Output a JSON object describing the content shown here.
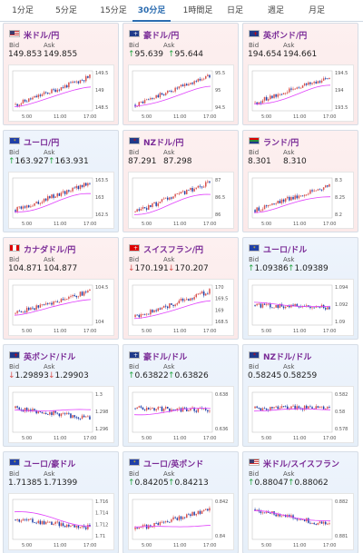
{
  "tabs": [
    {
      "label": "1分足",
      "active": false
    },
    {
      "label": "5分足",
      "active": false
    },
    {
      "label": "15分足",
      "active": false
    },
    {
      "label": "30分足",
      "active": true
    },
    {
      "label": "1時間足",
      "active": false
    },
    {
      "label": "日足",
      "active": false
    },
    {
      "label": "週足",
      "active": false
    },
    {
      "label": "月足",
      "active": false
    }
  ],
  "labels": {
    "bid": "Bid",
    "ask": "Ask"
  },
  "colors": {
    "up_bg": "#fdf0f0",
    "down_bg": "#eef4fc",
    "pair_name": "#7a2b97",
    "candle_up": "#d9534f",
    "candle_down": "#1f3fa8",
    "ma_line": "#e040fb",
    "tab_active": "#2b6cb0"
  },
  "x_ticks": [
    "5:00",
    "11:00",
    "17:00"
  ],
  "pairs": [
    {
      "name": "米ドル/円",
      "flag": "us",
      "bg": "up",
      "arrow": "",
      "bid": "149.853",
      "ask": "149.855",
      "y_ticks": [
        "149.5",
        "149",
        "148.5"
      ],
      "trend": [
        0.15,
        0.85
      ],
      "ma": [
        0.1,
        0.6
      ]
    },
    {
      "name": "豪ドル/円",
      "flag": "au",
      "bg": "up",
      "arrow": "up",
      "bid": "95.639",
      "ask": "95.644",
      "y_ticks": [
        "95.5",
        "95",
        "94.5"
      ],
      "trend": [
        0.15,
        0.88
      ],
      "ma": [
        0.1,
        0.6
      ]
    },
    {
      "name": "英ポンド/円",
      "flag": "gb",
      "bg": "up",
      "arrow": "",
      "bid": "194.654",
      "ask": "194.661",
      "y_ticks": [
        "194.5",
        "194",
        "193.5"
      ],
      "trend": [
        0.2,
        0.85
      ],
      "ma": [
        0.15,
        0.62
      ]
    },
    {
      "name": "ユーロ/円",
      "flag": "eu",
      "bg": "down",
      "arrow": "up",
      "bid": "163.927",
      "ask": "163.931",
      "y_ticks": [
        "163.5",
        "163",
        "162.5"
      ],
      "trend": [
        0.2,
        0.88
      ],
      "ma": [
        0.15,
        0.6
      ]
    },
    {
      "name": "NZドル/円",
      "flag": "nz",
      "bg": "up",
      "arrow": "",
      "bid": "87.291",
      "ask": "87.298",
      "y_ticks": [
        "87",
        "86.5",
        "86"
      ],
      "trend": [
        0.15,
        0.88
      ],
      "ma": [
        0.1,
        0.6
      ]
    },
    {
      "name": "ランド/円",
      "flag": "za",
      "bg": "up",
      "arrow": "",
      "bid": "8.301",
      "ask": "8.310",
      "y_ticks": [
        "8.3",
        "8.25",
        "8.2"
      ],
      "trend": [
        0.2,
        0.82
      ],
      "ma": [
        0.15,
        0.55
      ]
    },
    {
      "name": "カナダドル/円",
      "flag": "ca",
      "bg": "up",
      "arrow": "",
      "bid": "104.871",
      "ask": "104.877",
      "y_ticks": [
        "104.5",
        "104"
      ],
      "trend": [
        0.3,
        0.85
      ],
      "ma": [
        0.25,
        0.65
      ]
    },
    {
      "name": "スイスフラン/円",
      "flag": "ch",
      "bg": "up",
      "arrow": "down",
      "bid": "170.191",
      "ask": "170.207",
      "y_ticks": [
        "170",
        "169.5",
        "169",
        "168.5"
      ],
      "trend": [
        0.2,
        0.85
      ],
      "ma": [
        0.15,
        0.6
      ]
    },
    {
      "name": "ユーロ/ドル",
      "flag": "eu",
      "bg": "down",
      "arrow": "up",
      "bid": "1.09386",
      "ask": "1.09389",
      "y_ticks": [
        "1.094",
        "1.092",
        "1.09"
      ],
      "trend": [
        0.5,
        0.45
      ],
      "ma": [
        0.55,
        0.45
      ]
    },
    {
      "name": "英ポンド/ドル",
      "flag": "gb",
      "bg": "down",
      "arrow": "down",
      "bid": "1.29893",
      "ask": "1.29903",
      "y_ticks": [
        "1.3",
        "1.298",
        "1.296"
      ],
      "trend": [
        0.6,
        0.35
      ],
      "ma": [
        0.55,
        0.55
      ]
    },
    {
      "name": "豪ドル/ドル",
      "flag": "au",
      "bg": "down",
      "arrow": "up",
      "bid": "0.63822",
      "ask": "0.63826",
      "y_ticks": [
        "0.638",
        "0.636"
      ],
      "trend": [
        0.6,
        0.55
      ],
      "ma": [
        0.45,
        0.6
      ]
    },
    {
      "name": "NZドル/ドル",
      "flag": "nz",
      "bg": "down",
      "arrow": "",
      "bid": "0.58245",
      "ask": "0.58259",
      "y_ticks": [
        "0.582",
        "0.58",
        "0.578"
      ],
      "trend": [
        0.6,
        0.62
      ],
      "ma": [
        0.55,
        0.58
      ]
    },
    {
      "name": "ユーロ/豪ドル",
      "flag": "eu",
      "bg": "down",
      "arrow": "",
      "bid": "1.71385",
      "ask": "1.71399",
      "y_ticks": [
        "1.716",
        "1.714",
        "1.712",
        "1.71"
      ],
      "trend": [
        0.5,
        0.3
      ],
      "ma": [
        0.7,
        0.35
      ]
    },
    {
      "name": "ユーロ/英ポンド",
      "flag": "eu",
      "bg": "down",
      "arrow": "up",
      "bid": "0.84205",
      "ask": "0.84213",
      "y_ticks": [
        "0.842",
        "0.84"
      ],
      "trend": [
        0.25,
        0.75
      ],
      "ma": [
        0.3,
        0.35
      ]
    },
    {
      "name": "米ドル/スイスフラン",
      "flag": "us",
      "bg": "down",
      "arrow": "up",
      "bid": "0.88047",
      "ask": "0.88062",
      "y_ticks": [
        "0.882",
        "0.881"
      ],
      "trend": [
        0.75,
        0.35
      ],
      "ma": [
        0.7,
        0.45
      ]
    }
  ]
}
